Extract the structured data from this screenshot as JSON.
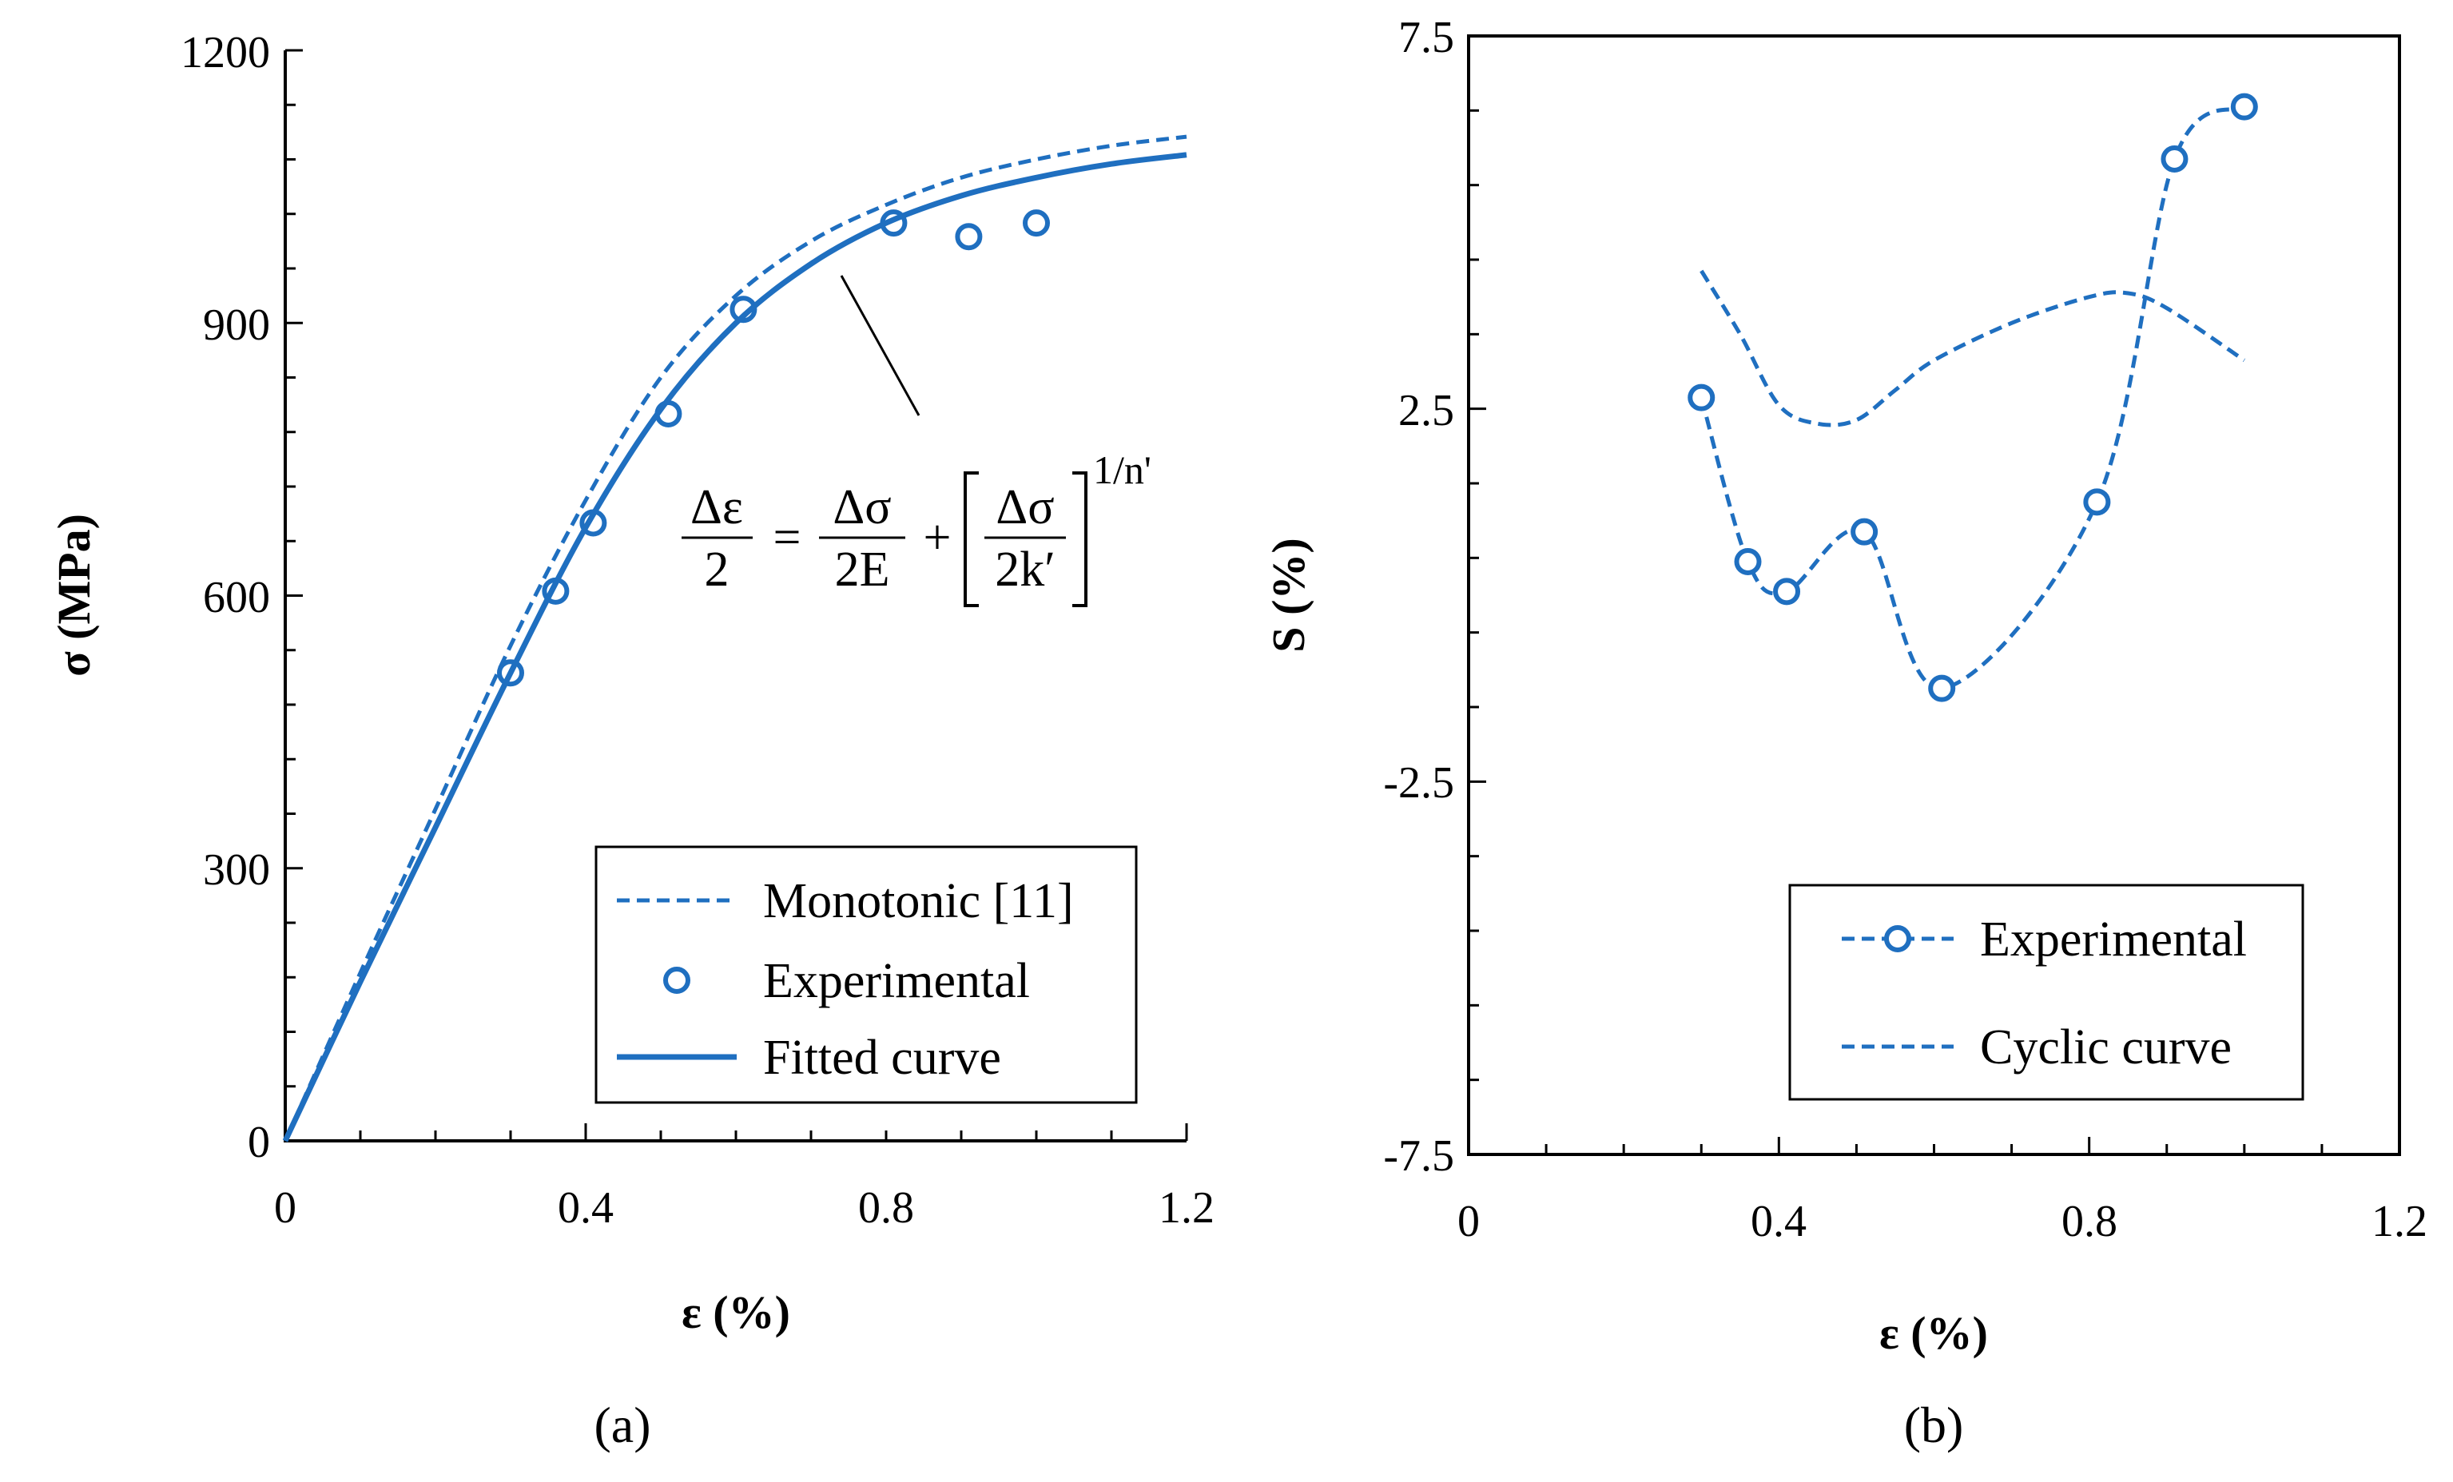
{
  "colors": {
    "series": "#1f6fc0",
    "axis": "#000000"
  },
  "panel_labels": [
    "(a)",
    "(b)"
  ],
  "equation": {
    "lhs_num": "Δε",
    "lhs_den": "2",
    "eq": "=",
    "t1_num": "Δσ",
    "t1_den": "2E",
    "plus": "+",
    "t2_num": "Δσ",
    "t2_den": "2k′",
    "exponent": "1/n'"
  },
  "chart_data": [
    {
      "type": "line",
      "panel": "(a)",
      "xlabel": "ε (%)",
      "ylabel": "σ (MPa)",
      "xlim": [
        0,
        1.2
      ],
      "ylim": [
        0,
        1200
      ],
      "xticks": [
        "0",
        "0.4",
        "0.8",
        "1.2"
      ],
      "yticks": [
        "0",
        "300",
        "600",
        "900",
        "1200"
      ],
      "legend_position": "bottom-right",
      "series": [
        {
          "name": "Monotonic [11]",
          "style": "dashed",
          "x": [
            0,
            0.1,
            0.2,
            0.3,
            0.4,
            0.5,
            0.6,
            0.7,
            0.8,
            0.9,
            1.0,
            1.1,
            1.2
          ],
          "y": [
            0,
            185,
            365,
            545,
            705,
            840,
            930,
            990,
            1030,
            1060,
            1080,
            1095,
            1105
          ]
        },
        {
          "name": "Experimental",
          "style": "markers",
          "x": [
            0.3,
            0.36,
            0.41,
            0.51,
            0.61,
            0.81,
            0.91,
            1.0
          ],
          "y": [
            515,
            605,
            680,
            800,
            915,
            1010,
            995,
            1010
          ]
        },
        {
          "name": "Fitted curve",
          "style": "solid",
          "x": [
            0,
            0.1,
            0.2,
            0.3,
            0.4,
            0.5,
            0.6,
            0.7,
            0.8,
            0.9,
            1.0,
            1.1,
            1.2
          ],
          "y": [
            0,
            175,
            345,
            515,
            675,
            805,
            900,
            965,
            1010,
            1040,
            1060,
            1075,
            1085
          ]
        }
      ]
    },
    {
      "type": "line",
      "panel": "(b)",
      "xlabel": "ε (%)",
      "ylabel": "S (%)",
      "xlim": [
        0,
        1.2
      ],
      "ylim": [
        -7.5,
        7.5
      ],
      "xticks": [
        "0",
        "0.4",
        "0.8",
        "1.2"
      ],
      "yticks": [
        "-7.5",
        "-2.5",
        "2.5",
        "7.5"
      ],
      "legend_position": "bottom-right",
      "series": [
        {
          "name": "Experimental",
          "style": "dashed-markers",
          "x": [
            0.3,
            0.36,
            0.41,
            0.51,
            0.61,
            0.81,
            0.91,
            1.0
          ],
          "y": [
            2.65,
            0.45,
            0.05,
            0.85,
            -1.25,
            1.25,
            5.85,
            6.55
          ]
        },
        {
          "name": "Cyclic curve",
          "style": "dashed",
          "x": [
            0.3,
            0.35,
            0.4,
            0.45,
            0.5,
            0.55,
            0.6,
            0.7,
            0.8,
            0.85,
            0.9,
            1.0
          ],
          "y": [
            4.35,
            3.5,
            2.55,
            2.3,
            2.35,
            2.75,
            3.15,
            3.65,
            4.0,
            4.05,
            3.85,
            3.15
          ]
        }
      ]
    }
  ]
}
